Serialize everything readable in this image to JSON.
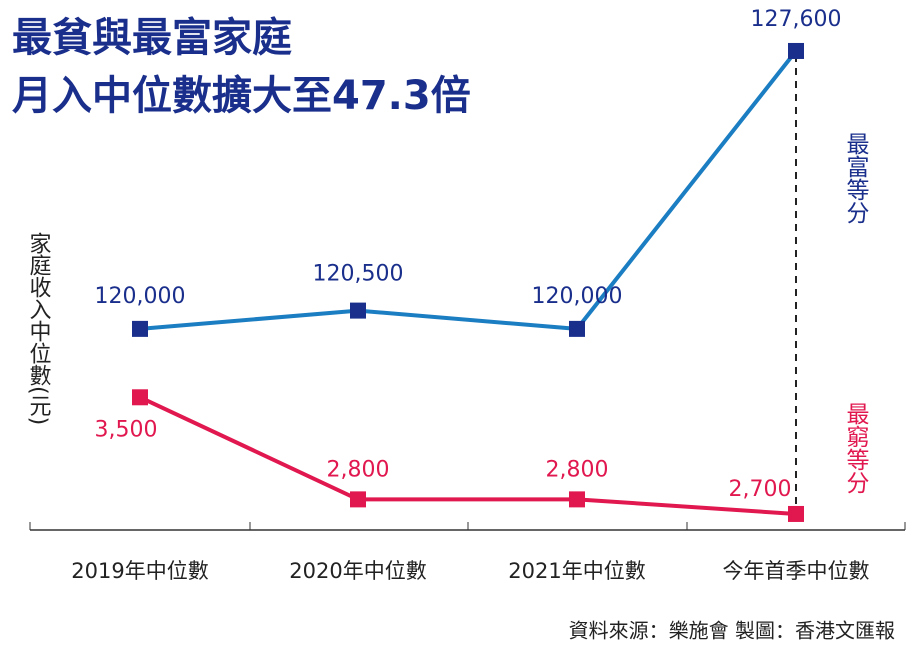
{
  "chart_data": {
    "type": "line",
    "title": [
      "最貧與最富家庭",
      "月入中位數擴大至47.3倍"
    ],
    "y_axis_label": "家庭收入中位數(元)",
    "categories": [
      "2019年中位數",
      "2020年中位數",
      "2021年中位數",
      "今年首季中位數"
    ],
    "series": [
      {
        "name": "最富等分",
        "color": "#1b7dc2",
        "marker_color": "#1a2f8c",
        "axis": "y2",
        "values": [
          120000,
          120500,
          120000,
          127600
        ],
        "value_labels": [
          "120,000",
          "120,500",
          "120,000",
          "127,600"
        ]
      },
      {
        "name": "最窮等分",
        "color": "#e1184f",
        "marker_color": "#e1184f",
        "values": [
          3500,
          2800,
          2800,
          2700
        ],
        "value_labels": [
          "3,500",
          "2,800",
          "2,800",
          "2,700"
        ]
      }
    ],
    "ylim": [
      2590,
      5950
    ],
    "y2lim": [
      114500,
      127900
    ],
    "source": "資料來源：樂施會 製圖：香港文匯報"
  }
}
